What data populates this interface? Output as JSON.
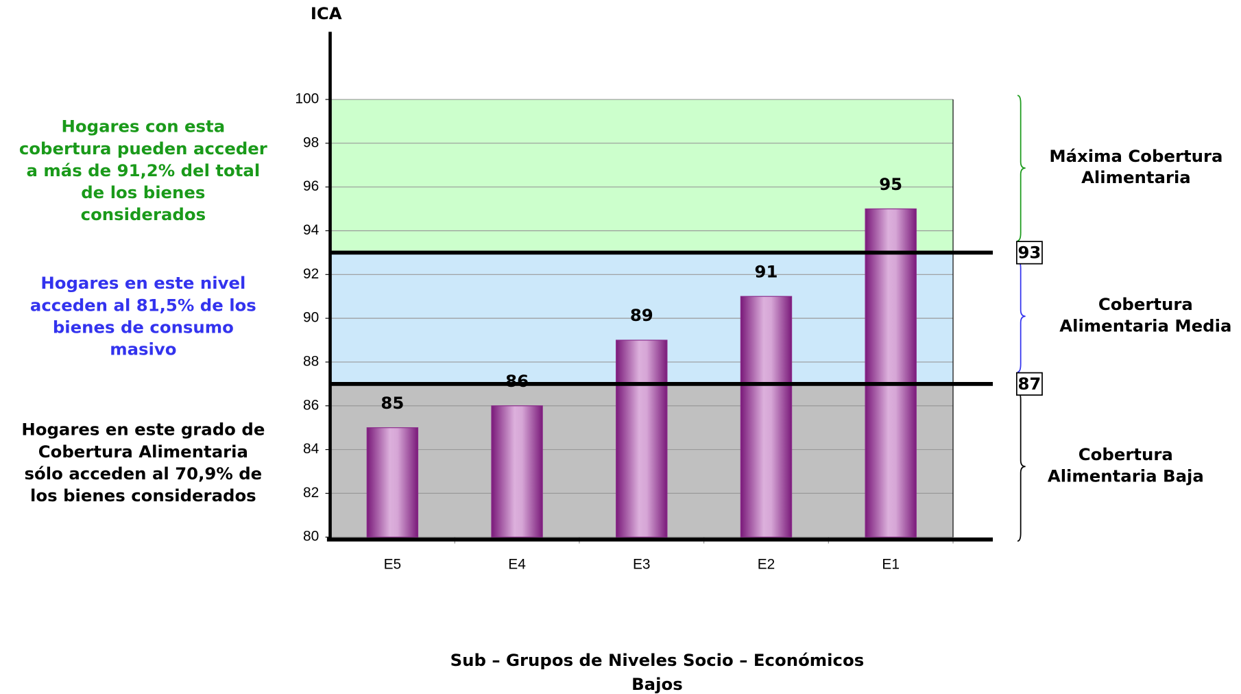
{
  "chart_data": {
    "type": "bar",
    "y_label": "ICA",
    "x_label": [
      "Sub – Grupos de Niveles Socio – Económicos",
      "Bajos"
    ],
    "categories": [
      "E5",
      "E4",
      "E3",
      "E2",
      "E1"
    ],
    "values": [
      85,
      86,
      89,
      91,
      95
    ],
    "color": "#8a2a8a",
    "ylim": [
      80,
      100
    ],
    "yticks": [
      80,
      82,
      84,
      86,
      88,
      90,
      92,
      94,
      96,
      98,
      100
    ],
    "grid": true,
    "thresholds": [
      93,
      87
    ],
    "bands": [
      {
        "range": [
          93,
          100
        ],
        "fill": "#ccffcc",
        "text_color": "#1a9a1a",
        "bracket_color": "#1a9a1a",
        "label": [
          "Máxima Cobertura",
          "Alimentaria"
        ],
        "description": [
          "Hogares con esta",
          "cobertura pueden acceder",
          "a más de 91,2% del total",
          "de los bienes",
          "considerados"
        ]
      },
      {
        "range": [
          87,
          93
        ],
        "fill": "#cce8fa",
        "text_color": "#3333ee",
        "bracket_color": "#3333ee",
        "label": [
          "Cobertura",
          "Alimentaria Media"
        ],
        "description": [
          "Hogares en este nivel",
          "acceden al 81,5% de los",
          "bienes de consumo",
          "masivo"
        ]
      },
      {
        "range": [
          80,
          87
        ],
        "fill": "#c0c0c0",
        "text_color": "#000000",
        "bracket_color": "#000000",
        "label": [
          "Cobertura",
          "Alimentaria Baja"
        ],
        "description": [
          "Hogares en este grado de",
          "Cobertura Alimentaria",
          "sólo acceden al 70,9% de",
          "los bienes considerados"
        ]
      }
    ]
  }
}
